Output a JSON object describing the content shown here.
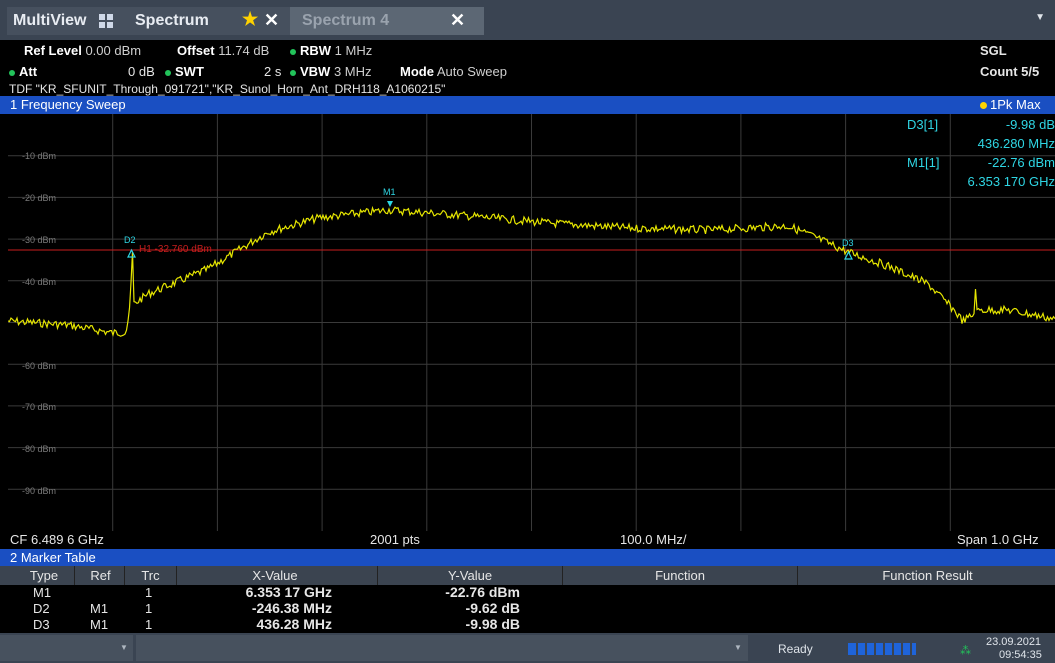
{
  "tabs": {
    "multiview": "MultiView",
    "spectrum": "Spectrum",
    "spectrum4": "Spectrum 4",
    "close": "✕"
  },
  "settings": {
    "ref_level_label": "Ref Level",
    "ref_level_value": "0.00 dBm",
    "offset_label": "Offset",
    "offset_value": "11.74 dB",
    "rbw_label": "RBW",
    "rbw_value": "1 MHz",
    "att_label": "Att",
    "att_value": "0 dB",
    "swt_label": "SWT",
    "swt_value": "2 s",
    "vbw_label": "VBW",
    "vbw_value": "3 MHz",
    "mode_label": "Mode",
    "mode_value": "Auto Sweep",
    "tdf_line": "TDF \"KR_SFUNIT_Through_091721\",\"KR_Sunol_Horn_Ant_DRH118_A1060215\"",
    "sgl": "SGL",
    "count": "Count 5/5"
  },
  "sweep": {
    "title": "1 Frequency Sweep",
    "trace": "1Pk Max"
  },
  "plot": {
    "y_labels": [
      "-10 dBm",
      "-20 dBm",
      "-30 dBm",
      "-40 dBm",
      "-60 dBm",
      "-70 dBm",
      "-80 dBm",
      "-90 dBm"
    ],
    "h1_label": "H1 -32.760 dBm",
    "marker_labels": {
      "m1": "M1",
      "d2": "D2",
      "d3": "D3"
    },
    "marker_list": {
      "d3_name": "D3[1]",
      "d3_val": "-9.98 dB",
      "d3_freq": "436.280 MHz",
      "m1_name": "M1[1]",
      "m1_val": "-22.76 dBm",
      "m1_freq": "6.353 170 GHz"
    },
    "colors": {
      "trace": "#e6e600",
      "line": "#c81e1e",
      "marker": "#2fd6e4",
      "grid": "#3a3a3a"
    }
  },
  "axis": {
    "cf": "CF 6.489 6 GHz",
    "pts": "2001 pts",
    "div": "100.0 MHz/",
    "span": "Span 1.0 GHz"
  },
  "marker_table": {
    "title": "2 Marker Table",
    "headers": [
      "Type",
      "Ref",
      "Trc",
      "X-Value",
      "Y-Value",
      "Function",
      "Function Result"
    ],
    "rows": [
      {
        "type": "M1",
        "ref": "",
        "trc": "1",
        "x": "6.353 17 GHz",
        "y": "-22.76 dBm"
      },
      {
        "type": "D2",
        "ref": "M1",
        "trc": "1",
        "x": "-246.38 MHz",
        "y": "-9.62 dB"
      },
      {
        "type": "D3",
        "ref": "M1",
        "trc": "1",
        "x": "436.28 MHz",
        "y": "-9.98 dB"
      }
    ]
  },
  "status": {
    "ready": "Ready",
    "date": "23.09.2021",
    "time": "09:54:35"
  }
}
